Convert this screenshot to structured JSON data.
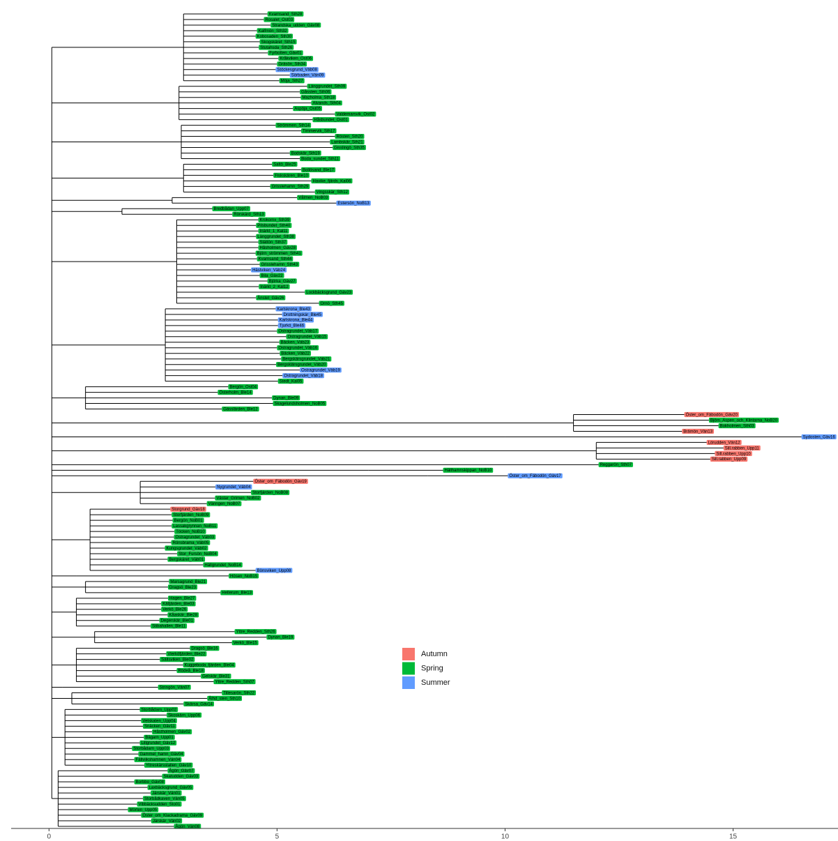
{
  "chart_data": {
    "type": "tree",
    "xlim": [
      -0.83,
      17.3
    ],
    "xticks": [
      0,
      5,
      10,
      15
    ],
    "groups": [
      {
        "name": "Autumn",
        "color": "#F8766D"
      },
      {
        "name": "Spring",
        "color": "#00BA38"
      },
      {
        "name": "Summer",
        "color": "#619CFF"
      }
    ],
    "tips": [
      {
        "label": "Kvarnsand_Sth28",
        "group": "Spring",
        "x": 4.79,
        "node": 2.95
      },
      {
        "label": "Rosalet_Ost03",
        "group": "Spring",
        "x": 4.71,
        "node": 2.95
      },
      {
        "label": "Strandska_udden_Gäv08",
        "group": "Spring",
        "x": 4.86,
        "node": 2.95
      },
      {
        "label": "Kalfmön_Sth32",
        "group": "Spring",
        "x": 4.56,
        "node": 2.95
      },
      {
        "label": "Kobosaden_Sth30",
        "group": "Spring",
        "x": 4.53,
        "node": 2.95
      },
      {
        "label": "Skogskäret_Sth15",
        "group": "Spring",
        "x": 4.62,
        "node": 2.95
      },
      {
        "label": "Stutahsda_Sth26",
        "group": "Spring",
        "x": 4.6,
        "node": 2.95
      },
      {
        "label": "Fyrbotten_Gäv01",
        "group": "Spring",
        "x": 4.8,
        "node": 2.95
      },
      {
        "label": "Kråkviken_Ost06",
        "group": "Spring",
        "x": 5.03,
        "node": 2.95
      },
      {
        "label": "Gräsön_Sth34",
        "group": "Spring",
        "x": 5.0,
        "node": 2.95
      },
      {
        "label": "Stöckesgrund_Väb08",
        "group": "Summer",
        "x": 4.97,
        "node": 2.95
      },
      {
        "label": "Sörbaden_Vän09",
        "group": "Summer",
        "x": 5.28,
        "node": 2.95
      },
      {
        "label": "Möja_Sth27",
        "group": "Spring",
        "x": 5.05,
        "node": 2.95
      },
      {
        "label": "Länggrundet_Sth09",
        "group": "Spring",
        "x": 5.66,
        "node": 2.85
      },
      {
        "label": "Gåssten_Sth06",
        "group": "Spring",
        "x": 5.5,
        "node": 2.85
      },
      {
        "label": "Mazholma_Sth18",
        "group": "Spring",
        "x": 5.52,
        "node": 2.85
      },
      {
        "label": "Alvands_Sth04",
        "group": "Spring",
        "x": 5.75,
        "node": 2.85
      },
      {
        "label": "Aspöja_Ost05",
        "group": "Spring",
        "x": 5.35,
        "node": 2.85
      },
      {
        "label": "Valdemarsvik_Ost02",
        "group": "Spring",
        "x": 6.27,
        "node": 2.85
      },
      {
        "label": "Håsbundet_Ost01",
        "group": "Spring",
        "x": 5.78,
        "node": 2.85
      },
      {
        "label": "Strömmen_Sth14",
        "group": "Spring",
        "x": 4.97,
        "node": 2.9
      },
      {
        "label": "Timmervik_Sth17",
        "group": "Spring",
        "x": 5.53,
        "node": 2.9
      },
      {
        "label": "Rösten_Sth20",
        "group": "Spring",
        "x": 6.27,
        "node": 2.9
      },
      {
        "label": "Lambskär_Sth21",
        "group": "Spring",
        "x": 6.16,
        "node": 2.9
      },
      {
        "label": "Gisslingö_Sth35",
        "group": "Spring",
        "x": 6.22,
        "node": 2.9
      },
      {
        "label": "Bodskär_Sth19",
        "group": "Spring",
        "x": 5.28,
        "node": 2.9
      },
      {
        "label": "Boda_sundet_Sth11",
        "group": "Spring",
        "x": 5.5,
        "node": 2.9
      },
      {
        "label": "Saltö_Ble25",
        "group": "Spring",
        "x": 4.89,
        "node": 2.95
      },
      {
        "label": "Bollösand_Ble17",
        "group": "Spring",
        "x": 5.53,
        "node": 2.95
      },
      {
        "label": "Fiskskären_Ble10",
        "group": "Spring",
        "x": 4.92,
        "node": 2.95
      },
      {
        "label": "Havike_fjärds_Kal06",
        "group": "Spring",
        "x": 5.75,
        "node": 2.95
      },
      {
        "label": "Grisslehamn_Sth29",
        "group": "Spring",
        "x": 4.85,
        "node": 2.95
      },
      {
        "label": "Vingsskär_Sth12",
        "group": "Spring",
        "x": 5.83,
        "node": 2.95
      },
      {
        "label": "Vålmen_NoB03",
        "group": "Spring",
        "x": 5.44,
        "node": 2.7
      },
      {
        "label": "Estersön_NoB13",
        "group": "Summer",
        "x": 6.3,
        "node": 2.7
      },
      {
        "label": "Bredbådan_Upp07",
        "group": "Spring",
        "x": 3.58,
        "node": 1.6
      },
      {
        "label": "Rörskärd_Sth13",
        "group": "Spring",
        "x": 4.02,
        "node": 1.6
      },
      {
        "label": "Krokomx_Sth39",
        "group": "Spring",
        "x": 4.59,
        "node": 2.8
      },
      {
        "label": "Pilsbundet_Sth40",
        "group": "Spring",
        "x": 4.54,
        "node": 2.8
      },
      {
        "label": "Inärkt_1_Kal11",
        "group": "Spring",
        "x": 4.59,
        "node": 2.8
      },
      {
        "label": "Länggrundet_Sth38",
        "group": "Spring",
        "x": 4.54,
        "node": 2.8
      },
      {
        "label": "Slättön_Sth37",
        "group": "Spring",
        "x": 4.59,
        "node": 2.8
      },
      {
        "label": "Håsholmen_Gäv28",
        "group": "Spring",
        "x": 4.59,
        "node": 2.8
      },
      {
        "label": "Björn_strömmen_Sth41",
        "group": "Spring",
        "x": 4.53,
        "node": 2.8
      },
      {
        "label": "Kvarnsand_Sth44",
        "group": "Spring",
        "x": 4.56,
        "node": 2.8
      },
      {
        "label": "Grisslehamn_Sth43",
        "group": "Spring",
        "x": 4.62,
        "node": 2.8
      },
      {
        "label": "Hästviken_Väb24",
        "group": "Summer",
        "x": 4.43,
        "node": 2.8
      },
      {
        "label": "Bila_Gäv22",
        "group": "Spring",
        "x": 4.62,
        "node": 2.8
      },
      {
        "label": "Björka_Gäv27",
        "group": "Spring",
        "x": 4.79,
        "node": 2.8
      },
      {
        "label": "Inärkt_2_Kal12",
        "group": "Spring",
        "x": 4.6,
        "node": 2.8
      },
      {
        "label": "Lockbäcksgrund_Gäv23",
        "group": "Spring",
        "x": 5.61,
        "node": 2.8
      },
      {
        "label": "Ånstet_Gäv26",
        "group": "Spring",
        "x": 4.54,
        "node": 2.8
      },
      {
        "label": "Ornö_Sth45",
        "group": "Spring",
        "x": 5.92,
        "node": 2.8
      },
      {
        "label": "Karlskrona_Ble43",
        "group": "Summer",
        "x": 4.97,
        "node": 2.55
      },
      {
        "label": "Drottningskär_Ble45",
        "group": "Summer",
        "x": 5.11,
        "node": 2.55
      },
      {
        "label": "Karlskrona_Ble44",
        "group": "Summer",
        "x": 5.02,
        "node": 2.55
      },
      {
        "label": "Tjurkö_Ble46",
        "group": "Summer",
        "x": 5.02,
        "node": 2.55
      },
      {
        "label": "Ostragrundet_Väb17",
        "group": "Spring",
        "x": 5.0,
        "node": 2.55
      },
      {
        "label": "Ostragrundet_Väb15",
        "group": "Spring",
        "x": 5.2,
        "node": 2.55
      },
      {
        "label": "Bäcken_Väb23",
        "group": "Spring",
        "x": 5.05,
        "node": 2.55
      },
      {
        "label": "Ostragrundet_Väb16",
        "group": "Spring",
        "x": 5.0,
        "node": 2.55
      },
      {
        "label": "Bäcken_Väb22",
        "group": "Spring",
        "x": 5.06,
        "node": 2.55
      },
      {
        "label": "Bergskärsgrundet_Väb21",
        "group": "Spring",
        "x": 5.09,
        "node": 2.55
      },
      {
        "label": "Bergsklärsgrundet_Väb20",
        "group": "Spring",
        "x": 4.98,
        "node": 2.55
      },
      {
        "label": "Ostragrundet_Väb19",
        "group": "Summer",
        "x": 5.5,
        "node": 2.55
      },
      {
        "label": "Ostragrundet_Väb18",
        "group": "Summer",
        "x": 5.12,
        "node": 2.55
      },
      {
        "label": "Stedt_Kal05",
        "group": "Spring",
        "x": 5.02,
        "node": 2.55
      },
      {
        "label": "Bergön_Ost04",
        "group": "Spring",
        "x": 3.93,
        "node": 0.8
      },
      {
        "label": "Österholm_Ble14",
        "group": "Spring",
        "x": 3.7,
        "node": 0.8
      },
      {
        "label": "Dynan_Ble09",
        "group": "Spring",
        "x": 4.89,
        "node": 0.8
      },
      {
        "label": "Skagelundsholmen_NoB05",
        "group": "Spring",
        "x": 4.91,
        "node": 0.8
      },
      {
        "label": "Gässlärden_Ble12",
        "group": "Spring",
        "x": 3.79,
        "node": 0.8
      },
      {
        "label": "Öster_om_Fäbodön_Gäv20",
        "group": "Autumn",
        "x": 13.93,
        "node": 11.5
      },
      {
        "label": "Björn_Aspen_och_Klintarna_NoB20",
        "group": "Spring",
        "x": 14.47,
        "node": 11.5
      },
      {
        "label": "Bokholmen_Sth03",
        "group": "Spring",
        "x": 14.68,
        "node": 11.5
      },
      {
        "label": "Brämön_Vän13",
        "group": "Autumn",
        "x": 13.88,
        "node": 11.5
      },
      {
        "label": "Sydosten_Gäv16",
        "group": "Summer",
        "x": 16.5,
        "node": 10.0
      },
      {
        "label": "Lörudden_Vän12",
        "group": "Autumn",
        "x": 14.42,
        "node": 12.0
      },
      {
        "label": "Sill.rabben_Upp11",
        "group": "Autumn",
        "x": 14.79,
        "node": 12.0
      },
      {
        "label": "Sill.rabben_Upp10",
        "group": "Autumn",
        "x": 14.6,
        "node": 12.0
      },
      {
        "label": "Sill.rabben_Upp09",
        "group": "Autumn",
        "x": 14.5,
        "node": 12.0
      },
      {
        "label": "Reggarön_Sth07",
        "group": "Spring",
        "x": 12.05,
        "node": 9.0
      },
      {
        "label": "Hällhamnskippan_NoB10",
        "group": "Spring",
        "x": 8.64,
        "node": 7.0
      },
      {
        "label": "Öster_om_Fäbodön_Gäv17",
        "group": "Summer",
        "x": 10.06,
        "node": 8.3
      },
      {
        "label": "Öster_om_Fäbodön_Gäv19",
        "group": "Autumn",
        "x": 4.48,
        "node": 2.0
      },
      {
        "label": "Nygrundet_Väb04",
        "group": "Summer",
        "x": 3.65,
        "node": 2.0
      },
      {
        "label": "Storfjärden_NoB08",
        "group": "Spring",
        "x": 4.43,
        "node": 2.0
      },
      {
        "label": "Västar_Grimen_NoB02",
        "group": "Spring",
        "x": 3.64,
        "node": 2.0
      },
      {
        "label": "Vänngen_NoB07",
        "group": "Spring",
        "x": 3.46,
        "node": 2.0
      },
      {
        "label": "Storgrund_Gäv18",
        "group": "Autumn",
        "x": 2.66,
        "node": 0.9
      },
      {
        "label": "Storfjärden_NoB09",
        "group": "Spring",
        "x": 2.69,
        "node": 0.9
      },
      {
        "label": "Bergön_NoB01",
        "group": "Spring",
        "x": 2.71,
        "node": 0.9
      },
      {
        "label": "Lassakgrynnan_NoB11",
        "group": "Spring",
        "x": 2.69,
        "node": 0.9
      },
      {
        "label": "Töcken_NoB10",
        "group": "Spring",
        "x": 2.75,
        "node": 0.9
      },
      {
        "label": "Ostragrundet_Väb03",
        "group": "Spring",
        "x": 2.74,
        "node": 0.9
      },
      {
        "label": "Rönsbrama_Väb05",
        "group": "Spring",
        "x": 2.68,
        "node": 0.9
      },
      {
        "label": "Kungsgrundet_Väb02",
        "group": "Spring",
        "x": 2.54,
        "node": 0.9
      },
      {
        "label": "Stor_Fursön_NoB04",
        "group": "Spring",
        "x": 2.81,
        "node": 0.9
      },
      {
        "label": "Bergskäret_Väb01",
        "group": "Spring",
        "x": 2.6,
        "node": 0.9
      },
      {
        "label": "Hällgrundet_NoB14",
        "group": "Spring",
        "x": 3.38,
        "node": 0.9
      },
      {
        "label": "Bönsviken_Upp08",
        "group": "Summer",
        "x": 4.53,
        "node": 0.9
      },
      {
        "label": "Hösen_NoB15",
        "group": "Spring",
        "x": 3.94,
        "node": 0.6
      },
      {
        "label": "Marsagrund_Ble21",
        "group": "Spring",
        "x": 2.63,
        "node": 0.8
      },
      {
        "label": "Dragsö_Ble23",
        "group": "Spring",
        "x": 2.61,
        "node": 0.8
      },
      {
        "label": "Hellerum_Ble13",
        "group": "Spring",
        "x": 3.76,
        "node": 0.8
      },
      {
        "label": "Hagen_Ble27",
        "group": "Spring",
        "x": 2.61,
        "node": 0.6
      },
      {
        "label": "Källjärden_Ble03",
        "group": "Spring",
        "x": 2.46,
        "node": 0.6
      },
      {
        "label": "Verkö_Ble26",
        "group": "Spring",
        "x": 2.46,
        "node": 0.6
      },
      {
        "label": "Kåaskär_Ble28",
        "group": "Spring",
        "x": 2.6,
        "node": 0.6
      },
      {
        "label": "Degerskär_Ble01",
        "group": "Spring",
        "x": 2.42,
        "node": 0.6
      },
      {
        "label": "Stibahallen_Ble11",
        "group": "Spring",
        "x": 2.23,
        "node": 0.6
      },
      {
        "label": "Yttre_Redden_Sth26",
        "group": "Spring",
        "x": 4.07,
        "node": 1.0
      },
      {
        "label": "Dynan_Ble19",
        "group": "Spring",
        "x": 4.77,
        "node": 1.0
      },
      {
        "label": "Verkö_Ble15",
        "group": "Spring",
        "x": 4.01,
        "node": 1.0
      },
      {
        "label": "Dragsö_Ble16",
        "group": "Spring",
        "x": 3.09,
        "node": 0.6
      },
      {
        "label": "Vierköfjärden_Ble22",
        "group": "Spring",
        "x": 2.57,
        "node": 0.6
      },
      {
        "label": "Sältsviken_Ble02",
        "group": "Spring",
        "x": 2.43,
        "node": 0.6
      },
      {
        "label": "Kuggeboda_fjärden_Ble04",
        "group": "Spring",
        "x": 2.94,
        "node": 0.6
      },
      {
        "label": "Rödeå_Ble18",
        "group": "Spring",
        "x": 2.8,
        "node": 0.6
      },
      {
        "label": "Gelskär_Ble31",
        "group": "Spring",
        "x": 3.33,
        "node": 0.6
      },
      {
        "label": "Yttre_Redden_Sth07",
        "group": "Spring",
        "x": 3.61,
        "node": 0.6
      },
      {
        "label": "Stringön_Vän07",
        "group": "Spring",
        "x": 2.39,
        "node": 0.3
      },
      {
        "label": "Tillesarön_Sth22",
        "group": "Spring",
        "x": 3.79,
        "node": 0.5
      },
      {
        "label": "Ålhd_sten_Sth10",
        "group": "Spring",
        "x": 3.47,
        "node": 0.5
      },
      {
        "label": "Skärsa_Gäv14",
        "group": "Spring",
        "x": 2.95,
        "node": 0.5
      },
      {
        "label": "Storbådarn_Upp02",
        "group": "Spring",
        "x": 1.99,
        "node": 0.35
      },
      {
        "label": "Skoskärn_Upp06",
        "group": "Spring",
        "x": 2.58,
        "node": 0.35
      },
      {
        "label": "Vetskaten_Upp04",
        "group": "Spring",
        "x": 2.02,
        "node": 0.35
      },
      {
        "label": "Snäcken_Gäv11",
        "group": "Spring",
        "x": 2.06,
        "node": 0.35
      },
      {
        "label": "Håstholmen_Gäv02",
        "group": "Spring",
        "x": 2.26,
        "node": 0.35
      },
      {
        "label": "Bägarn_Upp01",
        "group": "Spring",
        "x": 2.08,
        "node": 0.35
      },
      {
        "label": "Lillgrundet_Gäv12",
        "group": "Spring",
        "x": 1.99,
        "node": 0.35
      },
      {
        "label": "Storbådarn_Upp03",
        "group": "Spring",
        "x": 1.82,
        "node": 0.35
      },
      {
        "label": "Gammel_hamn_Gäv04",
        "group": "Spring",
        "x": 1.96,
        "node": 0.35
      },
      {
        "label": "Fällviikshamnen_Vän04",
        "group": "Spring",
        "x": 1.87,
        "node": 0.35
      },
      {
        "label": "Yttreskärsstallen_Gäv10",
        "group": "Spring",
        "x": 2.09,
        "node": 0.35
      },
      {
        "label": "Ågön_Gäv07",
        "group": "Spring",
        "x": 2.6,
        "node": 0.2
      },
      {
        "label": "Skatudden_Gäv03",
        "group": "Spring",
        "x": 2.48,
        "node": 0.2
      },
      {
        "label": "Borbbo_Gäv08",
        "group": "Spring",
        "x": 1.87,
        "node": 0.2
      },
      {
        "label": "Laxbäcksgrund_Gäv05",
        "group": "Spring",
        "x": 2.16,
        "node": 0.2
      },
      {
        "label": "Järskär_Vän01",
        "group": "Spring",
        "x": 2.23,
        "node": 0.2
      },
      {
        "label": "Storbådkaven_Vän05",
        "group": "Spring",
        "x": 2.06,
        "node": 0.2
      },
      {
        "label": "Vibbäcksudden_Sto01",
        "group": "Spring",
        "x": 1.93,
        "node": 0.2
      },
      {
        "label": "Mörten_Upp05",
        "group": "Spring",
        "x": 1.73,
        "node": 0.2
      },
      {
        "label": "Öster_om_Klackadrama_Gäv09",
        "group": "Spring",
        "x": 2.02,
        "node": 0.2
      },
      {
        "label": "Järskär_Vän02",
        "group": "Spring",
        "x": 2.24,
        "node": 0.2
      },
      {
        "label": "Ågön_Vän08",
        "group": "Spring",
        "x": 2.74,
        "node": 0.2
      }
    ]
  }
}
